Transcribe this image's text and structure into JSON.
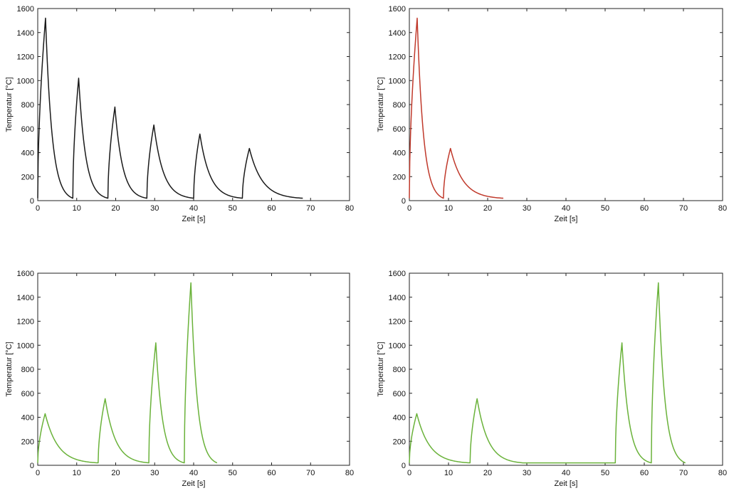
{
  "chart_data": [
    {
      "type": "line",
      "xlabel": "Zeit [s]",
      "ylabel": "Temperatur [°C]",
      "xlim": [
        0,
        80
      ],
      "ylim": [
        0,
        1600
      ],
      "xticks": [
        0,
        10,
        20,
        30,
        40,
        50,
        60,
        70,
        80
      ],
      "yticks": [
        0,
        200,
        400,
        600,
        800,
        1000,
        1200,
        1400,
        1600
      ],
      "grid": false,
      "series": [
        {
          "color": "#1a1a1a",
          "pulses": [
            {
              "t_start": 0.0,
              "t_peak": 2.0,
              "peak": 1520,
              "t_end": 9.0,
              "end": 20
            },
            {
              "t_start": 9.0,
              "t_peak": 10.5,
              "peak": 1020,
              "t_end": 18.0,
              "end": 20
            },
            {
              "t_start": 18.0,
              "t_peak": 19.8,
              "peak": 780,
              "t_end": 28.0,
              "end": 20
            },
            {
              "t_start": 28.0,
              "t_peak": 29.8,
              "peak": 630,
              "t_end": 40.0,
              "end": 20
            },
            {
              "t_start": 40.0,
              "t_peak": 41.6,
              "peak": 555,
              "t_end": 52.5,
              "end": 20
            },
            {
              "t_start": 52.5,
              "t_peak": 54.3,
              "peak": 435,
              "t_end": 68.0,
              "end": 20
            }
          ]
        }
      ]
    },
    {
      "type": "line",
      "xlabel": "Zeit [s]",
      "ylabel": "Temperatur [°C]",
      "xlim": [
        0,
        80
      ],
      "ylim": [
        0,
        1600
      ],
      "xticks": [
        0,
        10,
        20,
        30,
        40,
        50,
        60,
        70,
        80
      ],
      "yticks": [
        0,
        200,
        400,
        600,
        800,
        1000,
        1200,
        1400,
        1600
      ],
      "grid": false,
      "series": [
        {
          "color": "#c0392b",
          "pulses": [
            {
              "t_start": 0.0,
              "t_peak": 2.0,
              "peak": 1520,
              "t_end": 8.7,
              "end": 20
            },
            {
              "t_start": 8.7,
              "t_peak": 10.5,
              "peak": 435,
              "t_end": 24.0,
              "end": 20
            }
          ]
        }
      ]
    },
    {
      "type": "line",
      "xlabel": "Zeit [s]",
      "ylabel": "Temperatur [°C]",
      "xlim": [
        0,
        80
      ],
      "ylim": [
        0,
        1600
      ],
      "xticks": [
        0,
        10,
        20,
        30,
        40,
        50,
        60,
        70,
        80
      ],
      "yticks": [
        0,
        200,
        400,
        600,
        800,
        1000,
        1200,
        1400,
        1600
      ],
      "grid": false,
      "series": [
        {
          "color": "#6ab23a",
          "pulses": [
            {
              "t_start": 0.0,
              "t_peak": 1.9,
              "peak": 430,
              "t_end": 15.5,
              "end": 20
            },
            {
              "t_start": 15.5,
              "t_peak": 17.3,
              "peak": 555,
              "t_end": 28.5,
              "end": 20
            },
            {
              "t_start": 28.5,
              "t_peak": 30.3,
              "peak": 1020,
              "t_end": 37.6,
              "end": 20
            },
            {
              "t_start": 37.6,
              "t_peak": 39.3,
              "peak": 1520,
              "t_end": 46.0,
              "end": 20
            }
          ]
        }
      ]
    },
    {
      "type": "line",
      "xlabel": "Zeit [s]",
      "ylabel": "Temperatur [°C]",
      "xlim": [
        0,
        80
      ],
      "ylim": [
        0,
        1600
      ],
      "xticks": [
        0,
        10,
        20,
        30,
        40,
        50,
        60,
        70,
        80
      ],
      "yticks": [
        0,
        200,
        400,
        600,
        800,
        1000,
        1200,
        1400,
        1600
      ],
      "grid": false,
      "series": [
        {
          "color": "#6ab23a",
          "pulses": [
            {
              "t_start": 0.0,
              "t_peak": 1.9,
              "peak": 430,
              "t_end": 15.5,
              "end": 20
            },
            {
              "t_start": 15.5,
              "t_peak": 17.3,
              "peak": 555,
              "t_end": 29.0,
              "end": 20
            },
            {
              "t_start": 52.6,
              "t_peak": 54.3,
              "peak": 1020,
              "t_end": 61.8,
              "end": 20
            },
            {
              "t_start": 61.8,
              "t_peak": 63.6,
              "peak": 1520,
              "t_end": 70.5,
              "end": 20
            }
          ]
        }
      ]
    }
  ]
}
